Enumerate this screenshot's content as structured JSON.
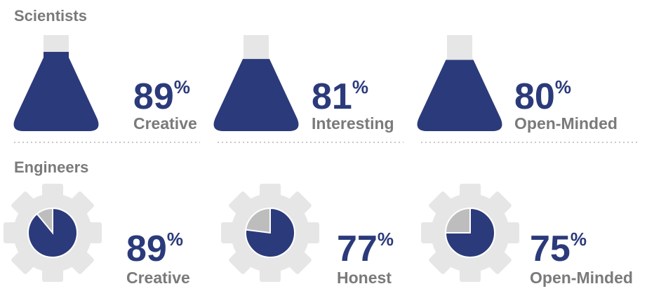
{
  "groups": [
    {
      "title": "Scientists",
      "unit": "%",
      "items": [
        {
          "value": 89,
          "label": "Creative"
        },
        {
          "value": 81,
          "label": "Interesting"
        },
        {
          "value": 80,
          "label": "Open-Minded"
        }
      ]
    },
    {
      "title": "Engineers",
      "unit": "%",
      "items": [
        {
          "value": 89,
          "label": "Creative"
        },
        {
          "value": 77,
          "label": "Honest"
        },
        {
          "value": 75,
          "label": "Open-Minded"
        }
      ]
    }
  ]
}
